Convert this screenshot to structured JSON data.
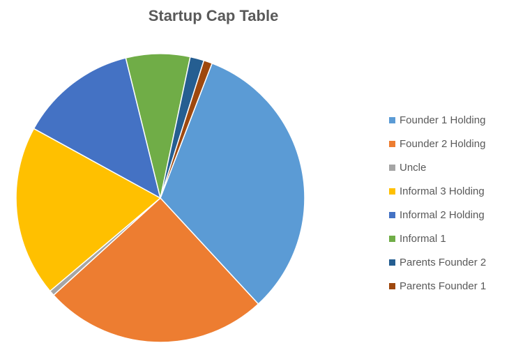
{
  "chart_data": {
    "type": "pie",
    "title": "Startup Cap Table",
    "legend_position": "right",
    "start_angle_deg": 21,
    "direction": "clockwise",
    "slices": [
      {
        "label": "Founder 1 Holding",
        "value": 0.27,
        "color": "#5B9BD5"
      },
      {
        "label": "Founder 2 Holding",
        "value": 0.21,
        "color": "#ED7D31"
      },
      {
        "label": "Uncle",
        "value": 0.005,
        "color": "#A5A5A5"
      },
      {
        "label": "Informal 3 Holding",
        "value": 0.16,
        "color": "#FFC000"
      },
      {
        "label": "Informal 2 Holding",
        "value": 0.11,
        "color": "#4472C4"
      },
      {
        "label": "Informal 1",
        "value": 0.06,
        "color": "#70AD47"
      },
      {
        "label": "Parents Founder 2",
        "value": 0.013,
        "color": "#255E91"
      },
      {
        "label": "Parents Founder 1",
        "value": 0.008,
        "color": "#9E480E"
      }
    ]
  }
}
